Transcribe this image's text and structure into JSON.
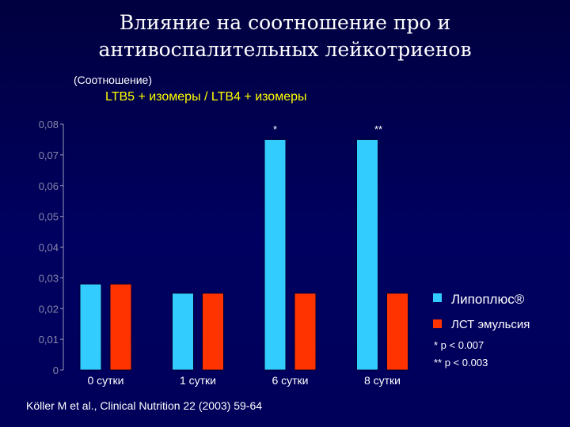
{
  "title_line1": "Влияние на соотношение про и",
  "title_line2": "антивоспалительных лейкотриенов",
  "unit_label": "(Соотношение)",
  "ratio_label": "LTB5 + изомеры / LTB4 + изомеры",
  "legend": {
    "series1": "Липоплюс®",
    "series2": "ЛСТ эмульсия"
  },
  "notes": {
    "p1": "* p < 0.007",
    "p2": "** p < 0.003"
  },
  "source": "Köller M et al., Clinical Nutrition 22 (2003) 59-64",
  "colors": {
    "series1": "#33ccff",
    "series2": "#ff3300"
  },
  "chart_data": {
    "type": "bar",
    "categories": [
      "0 сутки",
      "1 сутки",
      "6 сутки",
      "8 сутки"
    ],
    "series": [
      {
        "name": "Липоплюс®",
        "values": [
          0.028,
          0.025,
          0.075,
          0.075
        ]
      },
      {
        "name": "ЛСТ эмульсия",
        "values": [
          0.028,
          0.025,
          0.025,
          0.025
        ]
      }
    ],
    "ylim": [
      0,
      0.08
    ],
    "yticks": [
      "0",
      "0,01",
      "0,02",
      "0,03",
      "0,04",
      "0,05",
      "0,06",
      "0,07",
      "0,08"
    ],
    "annotations": [
      "",
      "",
      "*",
      "**"
    ],
    "legend_position": "right"
  }
}
